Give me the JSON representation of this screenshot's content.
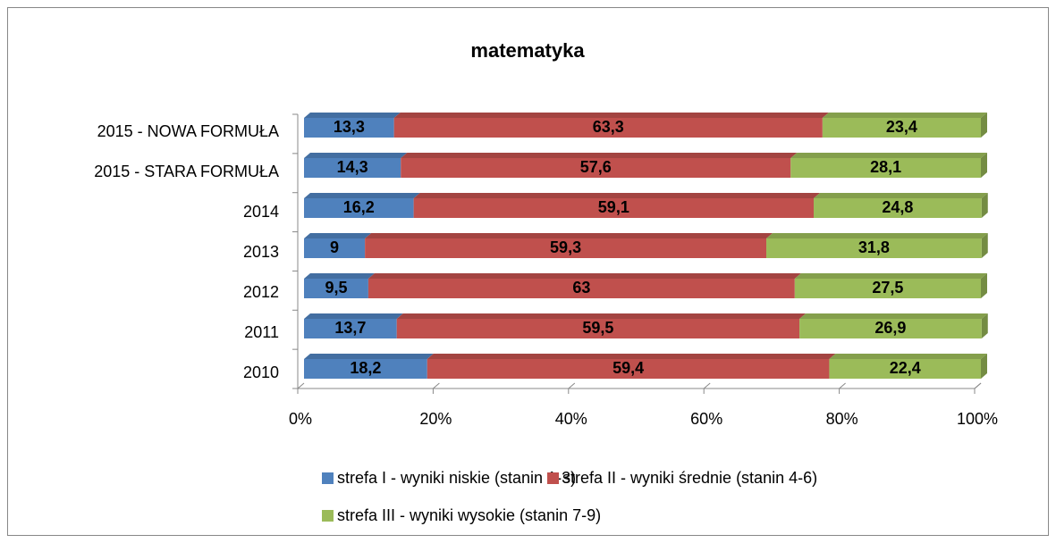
{
  "chart_data": {
    "type": "stacked-bar-horizontal-3d",
    "title": "matematyka",
    "categories": [
      "2015 - NOWA FORMUŁA",
      "2015 - STARA FORMUŁA",
      "2014",
      "2013",
      "2012",
      "2011",
      "2010"
    ],
    "series": [
      {
        "name": "strefa I - wyniki niskie (stanin 1-3)",
        "color": "#4f81bd",
        "values": [
          13.3,
          14.3,
          16.2,
          9,
          9.5,
          13.7,
          18.2
        ],
        "value_labels": [
          "13,3",
          "14,3",
          "16,2",
          "9",
          "9,5",
          "13,7",
          "18,2"
        ]
      },
      {
        "name": "strefa II - wyniki średnie (stanin 4-6)",
        "color": "#c0504d",
        "values": [
          63.3,
          57.6,
          59.1,
          59.3,
          63,
          59.5,
          59.4
        ],
        "value_labels": [
          "63,3",
          "57,6",
          "59,1",
          "59,3",
          "63",
          "59,5",
          "59,4"
        ]
      },
      {
        "name": "strefa III - wyniki wysokie (stanin 7-9)",
        "color": "#9bbb59",
        "values": [
          23.4,
          28.1,
          24.8,
          31.8,
          27.5,
          26.9,
          22.4
        ],
        "value_labels": [
          "23,4",
          "28,1",
          "24,8",
          "31,8",
          "27,5",
          "26,9",
          "22,4"
        ]
      }
    ],
    "xlim": [
      0,
      100
    ],
    "xticks": [
      {
        "value": 0,
        "label": "0%"
      },
      {
        "value": 20,
        "label": "20%"
      },
      {
        "value": 40,
        "label": "40%"
      },
      {
        "value": 60,
        "label": "60%"
      },
      {
        "value": 80,
        "label": "80%"
      },
      {
        "value": 100,
        "label": "100%"
      }
    ],
    "legend": "bottom"
  }
}
